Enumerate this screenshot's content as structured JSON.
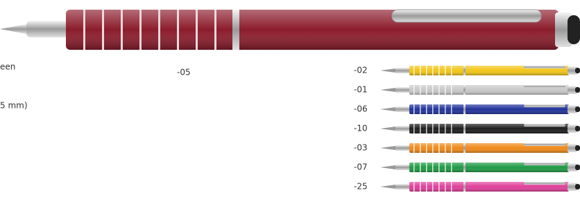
{
  "side_text": [
    "een",
    "5 mm)"
  ],
  "main_pen": {
    "code": "-05",
    "color": "#8c1c2c"
  },
  "variants": [
    {
      "code": "-02",
      "color": "#f2c518"
    },
    {
      "code": "-01",
      "color": "#c8c8c8"
    },
    {
      "code": "-06",
      "color": "#22339a"
    },
    {
      "code": "-10",
      "color": "#1e1e1e"
    },
    {
      "code": "-03",
      "color": "#f08a1a"
    },
    {
      "code": "-07",
      "color": "#1f9a45"
    },
    {
      "code": "-25",
      "color": "#e0409a"
    }
  ]
}
